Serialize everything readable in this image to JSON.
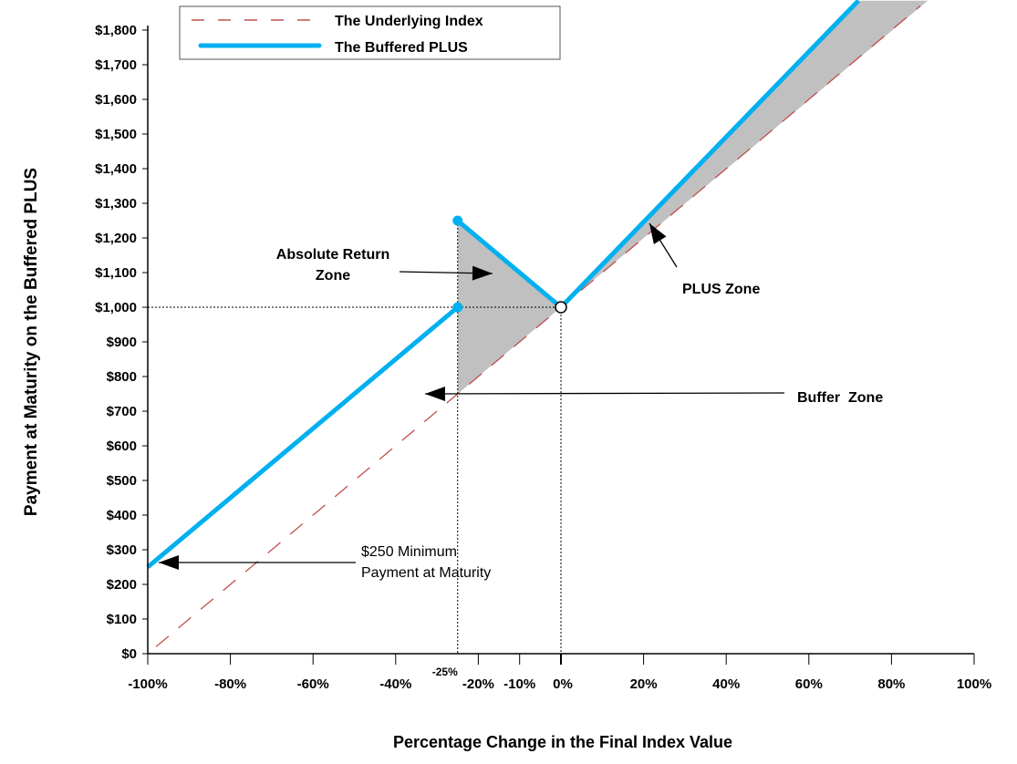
{
  "chart_data": {
    "type": "line",
    "title": "",
    "xlabel": "Percentage Change in the Final Index Value",
    "ylabel": "Payment at Maturity on the Buffered PLUS",
    "xlim": [
      -100,
      100
    ],
    "ylim": [
      0,
      1885
    ],
    "x_ticks": [
      -100,
      -80,
      -60,
      -40,
      -20,
      -10,
      0,
      20,
      40,
      60,
      80,
      100
    ],
    "x_tick_labels": [
      "-100%",
      "-80%",
      "-60%",
      "-40%",
      "-20%",
      "-10%",
      "0%",
      "20%",
      "40%",
      "60%",
      "80%",
      "100%"
    ],
    "x_extra_label": {
      "value": -25,
      "label": "-25%"
    },
    "y_ticks": [
      0,
      100,
      200,
      300,
      400,
      500,
      600,
      700,
      800,
      900,
      1000,
      1100,
      1200,
      1300,
      1400,
      1500,
      1600,
      1700,
      1800
    ],
    "y_tick_labels": [
      "$0",
      "$100",
      "$200",
      "$300",
      "$400",
      "$500",
      "$600",
      "$700",
      "$800",
      "$900",
      "$1,000",
      "$1,100",
      "$1,200",
      "$1,300",
      "$1,400",
      "$1,500",
      "$1,600",
      "$1,700",
      "$1,800"
    ],
    "grid": false,
    "legend": {
      "placement": "top-left",
      "entries": [
        "The Underlying Index",
        "The Buffered PLUS"
      ]
    },
    "series": [
      {
        "name": "The Underlying Index",
        "style": "dashed",
        "color": "#c0504d",
        "x": [
          -98,
          87
        ],
        "y": [
          20,
          1870
        ]
      },
      {
        "name": "The Buffered PLUS",
        "style": "solid",
        "color": "#00b0f0",
        "segments": [
          {
            "x": [
              -100,
              -25
            ],
            "y": [
              250,
              1000
            ]
          },
          {
            "x": [
              -25,
              0
            ],
            "y": [
              1250,
              1000
            ]
          },
          {
            "x": [
              0,
              72
            ],
            "y": [
              1000,
              1885
            ]
          }
        ]
      }
    ],
    "annotations": {
      "absolute_return": [
        "Absolute Return",
        "Zone"
      ],
      "plus_zone": "PLUS Zone",
      "buffer_zone": "Buffer  Zone",
      "minimum": [
        "$250 Minimum",
        "Payment at Maturity"
      ]
    },
    "colors": {
      "shade": "#c0c0c0",
      "index": "#c0504d",
      "plus": "#00b0f0"
    }
  }
}
